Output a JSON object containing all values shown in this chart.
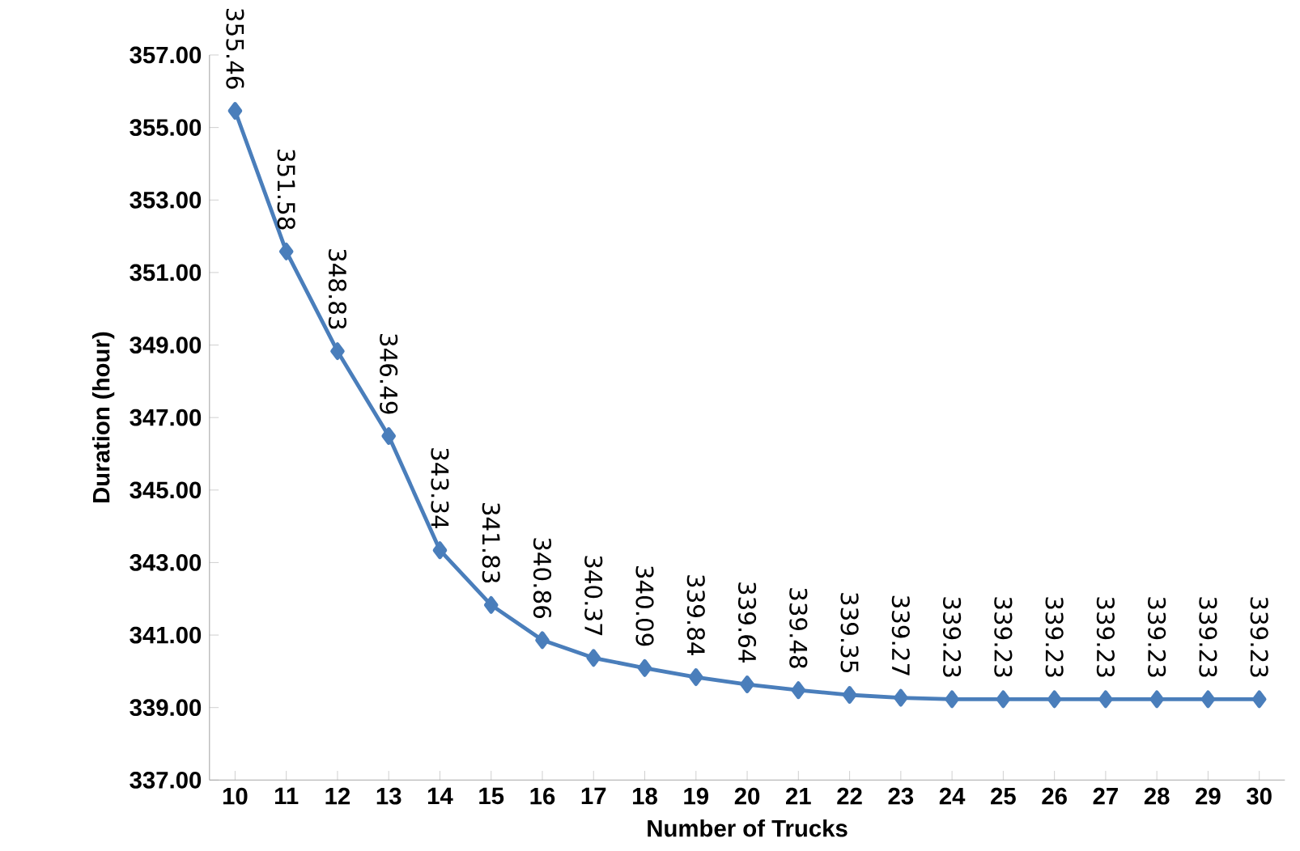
{
  "chart_data": {
    "type": "line",
    "xlabel": "Number of Trucks",
    "ylabel": "Duration (hour)",
    "categories": [
      "10",
      "11",
      "12",
      "13",
      "14",
      "15",
      "16",
      "17",
      "18",
      "19",
      "20",
      "21",
      "22",
      "23",
      "24",
      "25",
      "26",
      "27",
      "28",
      "29",
      "30"
    ],
    "values": [
      355.46,
      351.58,
      348.83,
      346.49,
      343.34,
      341.83,
      340.86,
      340.37,
      340.09,
      339.84,
      339.64,
      339.48,
      339.35,
      339.27,
      339.23,
      339.23,
      339.23,
      339.23,
      339.23,
      339.23,
      339.23
    ],
    "value_labels": [
      "355.46",
      "351.58",
      "348.83",
      "346.49",
      "343.34",
      "341.83",
      "340.86",
      "340.37",
      "340.09",
      "339.84",
      "339.64",
      "339.48",
      "339.35",
      "339.27",
      "339.23",
      "339.23",
      "339.23",
      "339.23",
      "339.23",
      "339.23",
      "339.23"
    ],
    "color": "#4a7ebb",
    "marker": "diamond",
    "line_style": "solid",
    "ylim": [
      337,
      357
    ],
    "yticks": [
      {
        "value": 337,
        "label": "337.00"
      },
      {
        "value": 339,
        "label": "339.00"
      },
      {
        "value": 341,
        "label": "341.00"
      },
      {
        "value": 343,
        "label": "343.00"
      },
      {
        "value": 345,
        "label": "345.00"
      },
      {
        "value": 347,
        "label": "347.00"
      },
      {
        "value": 349,
        "label": "349.00"
      },
      {
        "value": 351,
        "label": "351.00"
      },
      {
        "value": 353,
        "label": "353.00"
      },
      {
        "value": 355,
        "label": "355.00"
      },
      {
        "value": 357,
        "label": "357.00"
      }
    ]
  }
}
